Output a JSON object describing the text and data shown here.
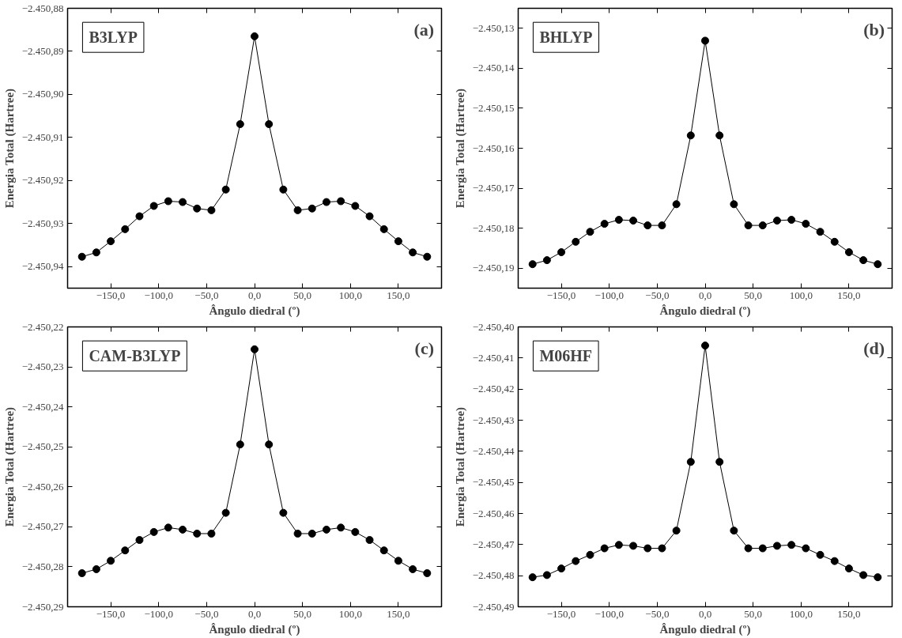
{
  "chart_data": [
    {
      "type": "line",
      "xlabel": "Ângulo diedral (º)",
      "ylabel": "Energia Total (Hartree)",
      "annotations": [
        "B3LYP",
        "(a)"
      ],
      "marker": "circle",
      "line_style": "solid",
      "grid": false,
      "x": [
        -180,
        -165,
        -150,
        -135,
        -120,
        -105,
        -90,
        -75,
        -60,
        -45,
        -30,
        -15,
        0,
        15,
        30,
        45,
        60,
        75,
        90,
        105,
        120,
        135,
        150,
        165,
        180
      ],
      "series": [
        {
          "color": "#000000",
          "values": [
            -2450.9377,
            -2450.9367,
            -2450.9341,
            -2450.9313,
            -2450.9283,
            -2450.9259,
            -2450.9248,
            -2450.925,
            -2450.9265,
            -2450.9269,
            -2450.9221,
            -2450.9069,
            -2450.8865,
            -2450.9069,
            -2450.9221,
            -2450.9269,
            -2450.9265,
            -2450.925,
            -2450.9248,
            -2450.9259,
            -2450.9283,
            -2450.9313,
            -2450.9341,
            -2450.9367,
            -2450.9377
          ]
        }
      ],
      "xlim": [
        -195,
        195
      ],
      "ylim": [
        -2450.945,
        -2450.88
      ],
      "xticks": [
        {
          "value": -150,
          "label": "−150,0"
        },
        {
          "value": -100,
          "label": "−100,0"
        },
        {
          "value": -50,
          "label": "−50,0"
        },
        {
          "value": 0,
          "label": "0,0"
        },
        {
          "value": 50,
          "label": "50,0"
        },
        {
          "value": 100,
          "label": "100,0"
        },
        {
          "value": 150,
          "label": "150,0"
        }
      ],
      "yticks": [
        {
          "value": -2450.94,
          "label": "−2.450,94"
        },
        {
          "value": -2450.93,
          "label": "−2.450,93"
        },
        {
          "value": -2450.92,
          "label": "−2.450,92"
        },
        {
          "value": -2450.91,
          "label": "−2.450,91"
        },
        {
          "value": -2450.9,
          "label": "−2.450,90"
        },
        {
          "value": -2450.89,
          "label": "−2.450,89"
        },
        {
          "value": -2450.88,
          "label": "−2.450,88"
        }
      ]
    },
    {
      "type": "line",
      "xlabel": "Ângulo diedral (º)",
      "ylabel": "Energia Total (Hartree)",
      "annotations": [
        "BHLYP",
        "(b)"
      ],
      "marker": "circle",
      "line_style": "solid",
      "grid": false,
      "x": [
        -180,
        -165,
        -150,
        -135,
        -120,
        -105,
        -90,
        -75,
        -60,
        -45,
        -30,
        -15,
        0,
        15,
        30,
        45,
        60,
        75,
        90,
        105,
        120,
        135,
        150,
        165,
        180
      ],
      "series": [
        {
          "color": "#000000",
          "values": [
            -2450.189,
            -2450.188,
            -2450.186,
            -2450.1834,
            -2450.1809,
            -2450.1789,
            -2450.1779,
            -2450.1781,
            -2450.1793,
            -2450.1793,
            -2450.174,
            -2450.1568,
            -2450.1331,
            -2450.1568,
            -2450.174,
            -2450.1793,
            -2450.1793,
            -2450.1781,
            -2450.1779,
            -2450.1789,
            -2450.1809,
            -2450.1834,
            -2450.186,
            -2450.188,
            -2450.189
          ]
        }
      ],
      "xlim": [
        -195,
        195
      ],
      "ylim": [
        -2450.195,
        -2450.125
      ],
      "xticks": [
        {
          "value": -150,
          "label": "−150,0"
        },
        {
          "value": -100,
          "label": "−100,0"
        },
        {
          "value": -50,
          "label": "−50,0"
        },
        {
          "value": 0,
          "label": "0,0"
        },
        {
          "value": 50,
          "label": "50,0"
        },
        {
          "value": 100,
          "label": "100,0"
        },
        {
          "value": 150,
          "label": "150,0"
        }
      ],
      "yticks": [
        {
          "value": -2450.19,
          "label": "−2.450,19"
        },
        {
          "value": -2450.18,
          "label": "−2.450,18"
        },
        {
          "value": -2450.17,
          "label": "−2.450,17"
        },
        {
          "value": -2450.16,
          "label": "−2.450,16"
        },
        {
          "value": -2450.15,
          "label": "−2.450,15"
        },
        {
          "value": -2450.14,
          "label": "−2.450,14"
        },
        {
          "value": -2450.13,
          "label": "−2.450,13"
        }
      ]
    },
    {
      "type": "line",
      "xlabel": "Ângulo diedral (º)",
      "ylabel": "Energia Total (Hartree)",
      "annotations": [
        "CAM-B3LYP",
        "(c)"
      ],
      "marker": "circle",
      "line_style": "solid",
      "grid": false,
      "x": [
        -180,
        -165,
        -150,
        -135,
        -120,
        -105,
        -90,
        -75,
        -60,
        -45,
        -30,
        -15,
        0,
        15,
        30,
        45,
        60,
        75,
        90,
        105,
        120,
        135,
        150,
        165,
        180
      ],
      "series": [
        {
          "color": "#000000",
          "values": [
            -2450.2816,
            -2450.2806,
            -2450.2785,
            -2450.2759,
            -2450.2733,
            -2450.2713,
            -2450.2702,
            -2450.2707,
            -2450.2717,
            -2450.2717,
            -2450.2665,
            -2450.2494,
            -2450.2256,
            -2450.2494,
            -2450.2665,
            -2450.2717,
            -2450.2717,
            -2450.2707,
            -2450.2702,
            -2450.2713,
            -2450.2733,
            -2450.2759,
            -2450.2785,
            -2450.2806,
            -2450.2816
          ]
        }
      ],
      "xlim": [
        -195,
        195
      ],
      "ylim": [
        -2450.29,
        -2450.22
      ],
      "xticks": [
        {
          "value": -150,
          "label": "−150,0"
        },
        {
          "value": -100,
          "label": "−100,0"
        },
        {
          "value": -50,
          "label": "−50,0"
        },
        {
          "value": 0,
          "label": "0,0"
        },
        {
          "value": 50,
          "label": "50,0"
        },
        {
          "value": 100,
          "label": "100,0"
        },
        {
          "value": 150,
          "label": "150,0"
        }
      ],
      "yticks": [
        {
          "value": -2450.29,
          "label": "−2.450,29"
        },
        {
          "value": -2450.28,
          "label": "−2.450,28"
        },
        {
          "value": -2450.27,
          "label": "−2.450,27"
        },
        {
          "value": -2450.26,
          "label": "−2.450,26"
        },
        {
          "value": -2450.25,
          "label": "−2.450,25"
        },
        {
          "value": -2450.24,
          "label": "−2.450,24"
        },
        {
          "value": -2450.23,
          "label": "−2.450,23"
        },
        {
          "value": -2450.22,
          "label": "−2.450,22"
        }
      ]
    },
    {
      "type": "line",
      "xlabel": "Ângulo diedral (º)",
      "ylabel": "Energia Total (Hartree)",
      "annotations": [
        "M06HF",
        "(d)"
      ],
      "marker": "circle",
      "line_style": "solid",
      "grid": false,
      "x": [
        -180,
        -165,
        -150,
        -135,
        -120,
        -105,
        -90,
        -75,
        -60,
        -45,
        -30,
        -15,
        0,
        15,
        30,
        45,
        60,
        75,
        90,
        105,
        120,
        135,
        150,
        165,
        180
      ],
      "series": [
        {
          "color": "#000000",
          "values": [
            -2450.4805,
            -2450.4798,
            -2450.4777,
            -2450.4753,
            -2450.4733,
            -2450.4712,
            -2450.4701,
            -2450.4704,
            -2450.4712,
            -2450.4712,
            -2450.4655,
            -2450.4434,
            -2450.406,
            -2450.4434,
            -2450.4655,
            -2450.4712,
            -2450.4712,
            -2450.4704,
            -2450.4701,
            -2450.4712,
            -2450.4733,
            -2450.4753,
            -2450.4777,
            -2450.4798,
            -2450.4805
          ]
        }
      ],
      "xlim": [
        -195,
        195
      ],
      "ylim": [
        -2450.49,
        -2450.4
      ],
      "xticks": [
        {
          "value": -150,
          "label": "−150,0"
        },
        {
          "value": -100,
          "label": "−100,0"
        },
        {
          "value": -50,
          "label": "−50,0"
        },
        {
          "value": 0,
          "label": "0,0"
        },
        {
          "value": 50,
          "label": "50,0"
        },
        {
          "value": 100,
          "label": "100,0"
        },
        {
          "value": 150,
          "label": "150,0"
        }
      ],
      "yticks": [
        {
          "value": -2450.49,
          "label": "−2.450,49"
        },
        {
          "value": -2450.48,
          "label": "−2.450,48"
        },
        {
          "value": -2450.47,
          "label": "−2.450,47"
        },
        {
          "value": -2450.46,
          "label": "−2.450,46"
        },
        {
          "value": -2450.45,
          "label": "−2.450,45"
        },
        {
          "value": -2450.44,
          "label": "−2.450,44"
        },
        {
          "value": -2450.43,
          "label": "−2.450,43"
        },
        {
          "value": -2450.42,
          "label": "−2.450,42"
        },
        {
          "value": -2450.41,
          "label": "−2.450,41"
        },
        {
          "value": -2450.4,
          "label": "−2.450,40"
        }
      ]
    }
  ]
}
